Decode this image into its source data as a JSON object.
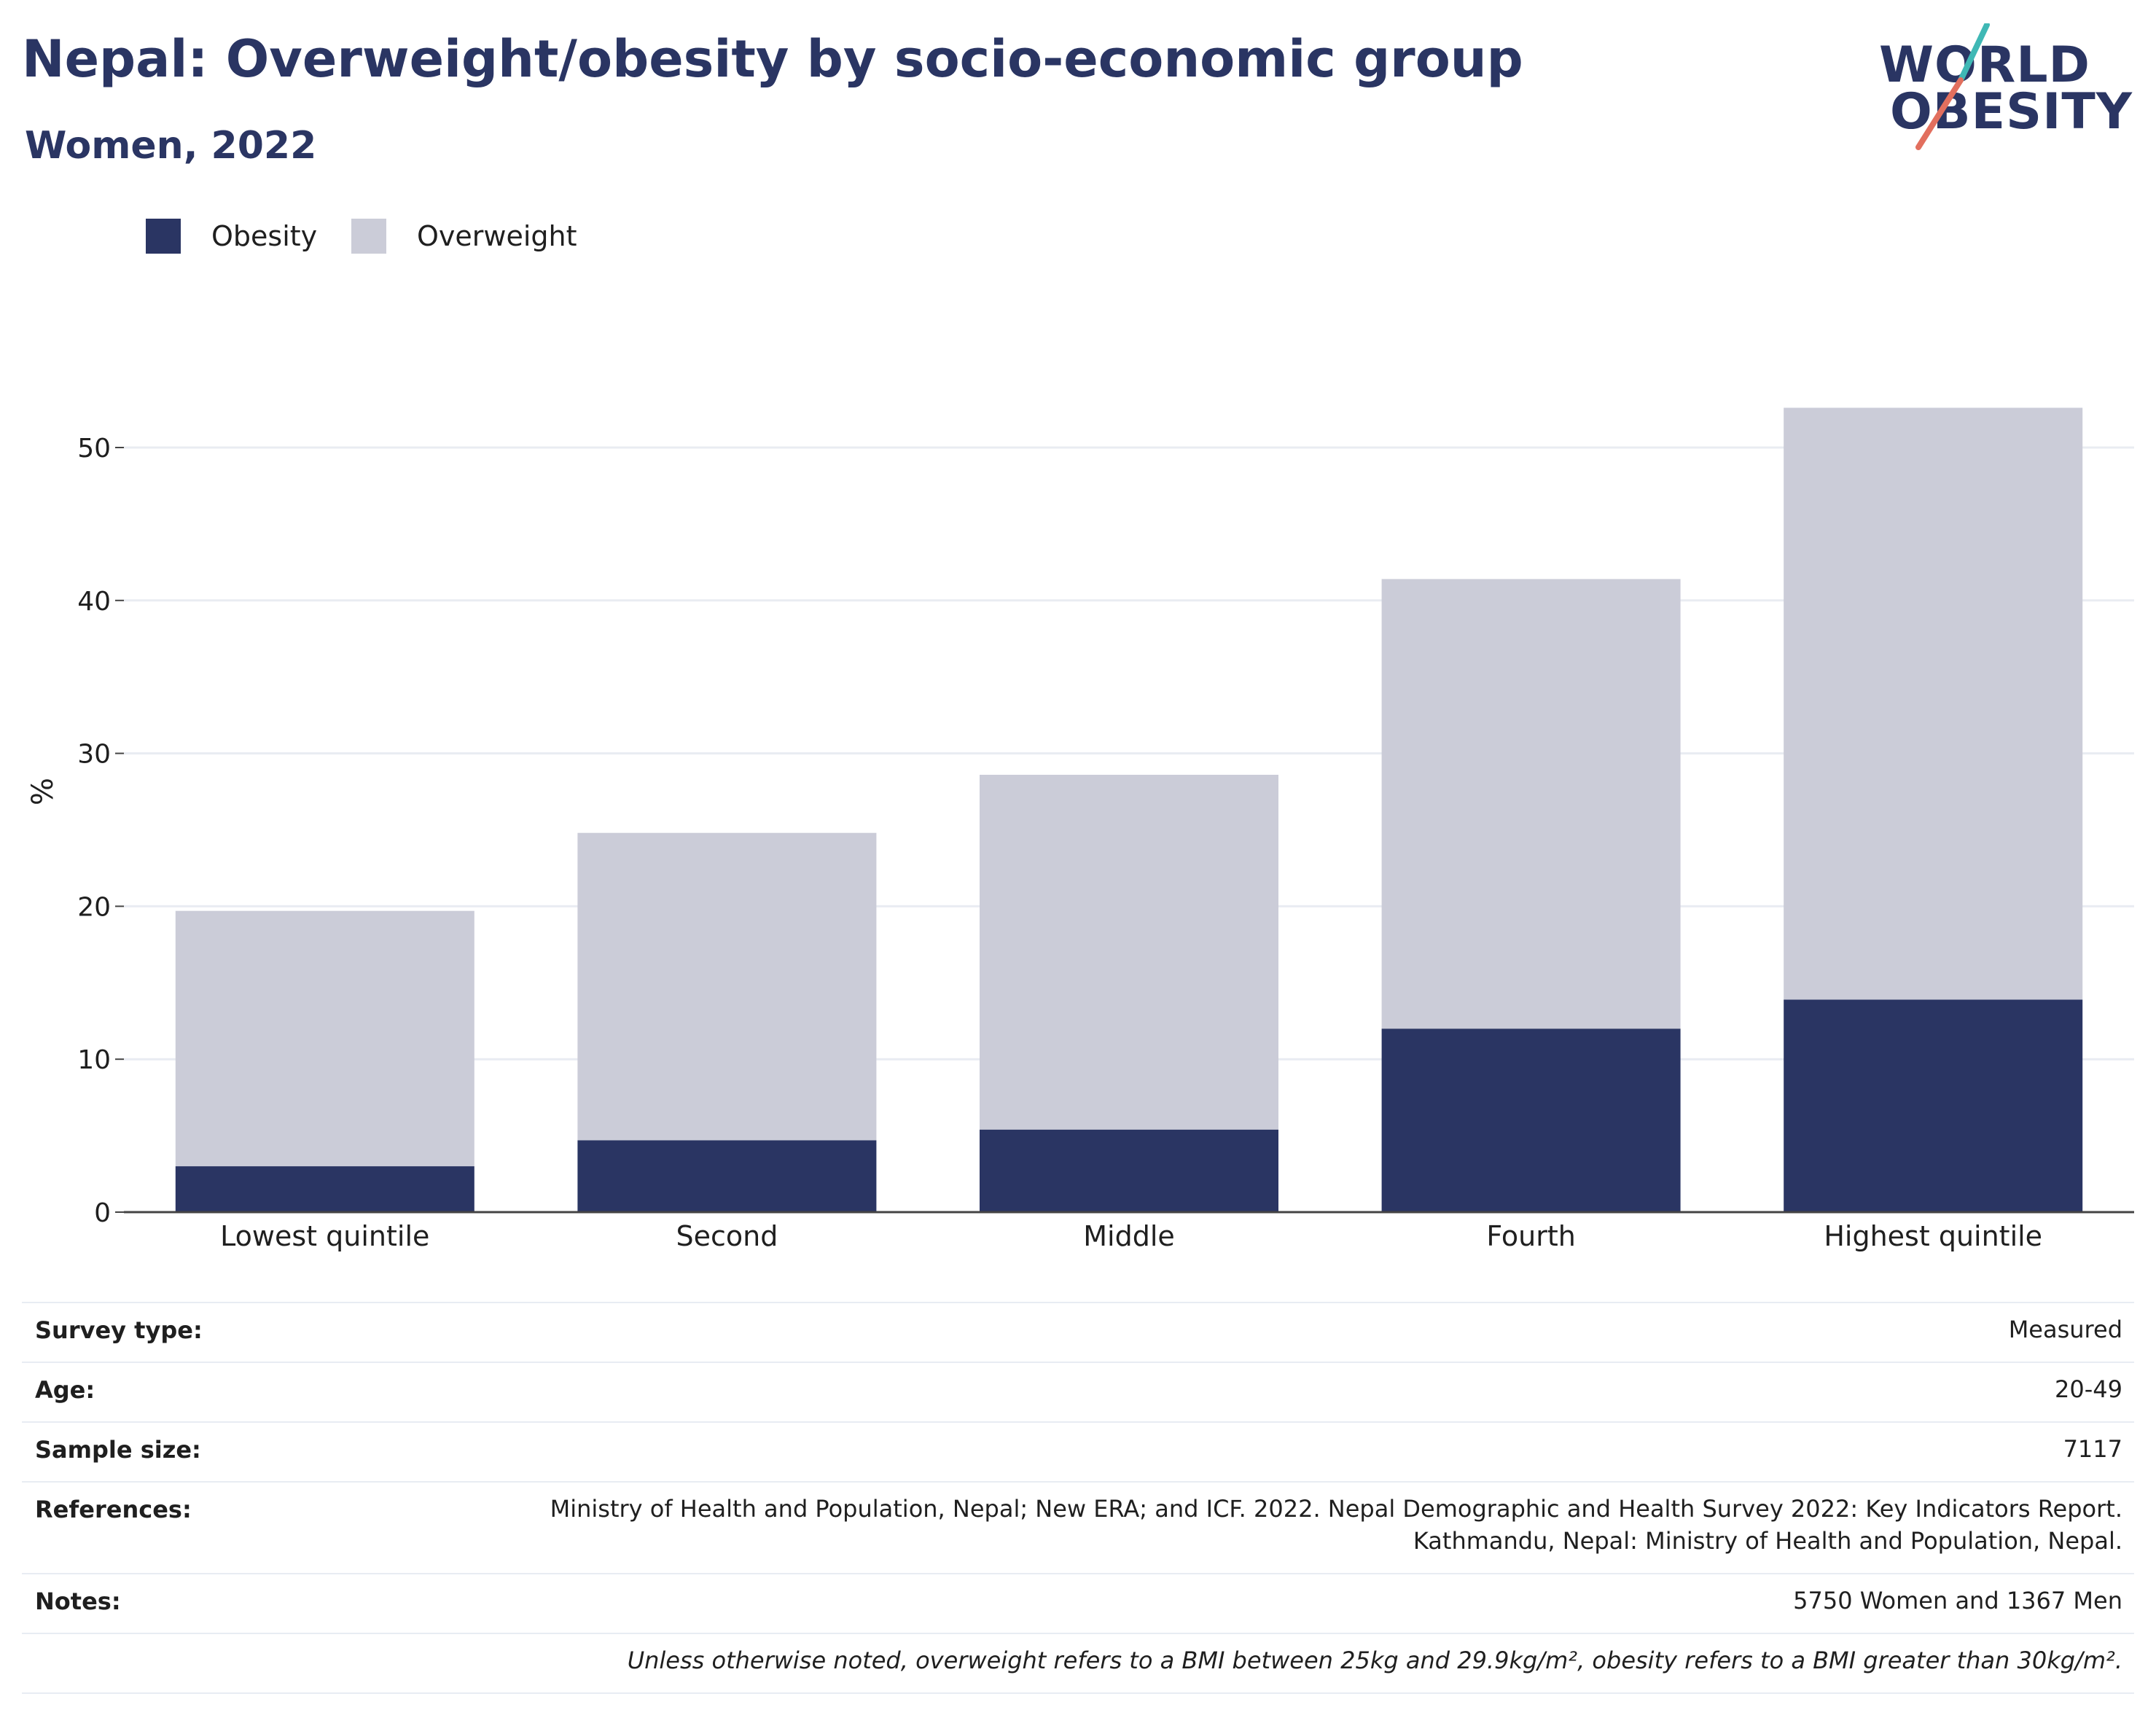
{
  "header": {
    "title": "Nepal: Overweight/obesity by socio-economic group",
    "subtitle": "Women, 2022"
  },
  "logo": {
    "line1": "WORLD",
    "line2": "OBESITY",
    "accent_colors": [
      "#3fb8b5",
      "#e26f5e"
    ],
    "text_color": "#2a3563"
  },
  "legend": {
    "items": [
      {
        "label": "Obesity",
        "color": "#2a3563"
      },
      {
        "label": "Overweight",
        "color": "#cbccd8"
      }
    ]
  },
  "chart_data": {
    "type": "bar",
    "stacked": true,
    "title": "Nepal: Overweight/obesity by socio-economic group",
    "subtitle": "Women, 2022",
    "xlabel": "",
    "ylabel": "%",
    "ylim": [
      0,
      55
    ],
    "yticks": [
      0,
      10,
      20,
      30,
      40,
      50
    ],
    "grid": true,
    "legend_position": "top-left",
    "categories": [
      "Lowest quintile",
      "Second",
      "Middle",
      "Fourth",
      "Highest quintile"
    ],
    "series": [
      {
        "name": "Obesity",
        "color": "#2a3563",
        "values": [
          3.0,
          4.7,
          5.4,
          12.0,
          13.9
        ]
      },
      {
        "name": "Overweight",
        "color": "#cbccd8",
        "values": [
          16.7,
          20.1,
          23.2,
          29.4,
          38.7
        ]
      }
    ],
    "totals": [
      19.7,
      24.8,
      28.6,
      41.4,
      52.6
    ]
  },
  "info_table": {
    "rows": [
      {
        "key": "Survey type:",
        "value": "Measured"
      },
      {
        "key": "Age:",
        "value": "20-49"
      },
      {
        "key": "Sample size:",
        "value": "7117"
      },
      {
        "key": "References:",
        "value": "Ministry of Health and Population, Nepal; New ERA; and ICF. 2022. Nepal Demographic and Health Survey 2022: Key Indicators Report.",
        "value2": "Kathmandu, Nepal: Ministry of Health and Population, Nepal."
      },
      {
        "key": "Notes:",
        "value": "5750 Women and 1367 Men"
      }
    ],
    "footnote": "Unless otherwise noted, overweight refers to a BMI between 25kg and 29.9kg/m², obesity refers to a BMI greater than 30kg/m²."
  }
}
